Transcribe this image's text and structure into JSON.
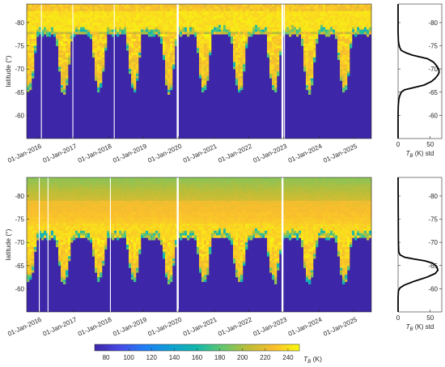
{
  "chart_data": [
    {
      "type": "heatmap",
      "panel": "top",
      "ylabel": "latitude (°)",
      "y_ticks": [
        -80,
        -75,
        -70,
        -65,
        -60
      ],
      "ylim": [
        -84,
        -55
      ],
      "x_ticks": [
        "01-Jan-2016",
        "01-Jan-2017",
        "01-Jan-2018",
        "01-Jan-2019",
        "01-Jan-2020",
        "01-Jan-2021",
        "01-Jan-2022",
        "01-Jan-2023",
        "01-Jan-2024",
        "01-Jan-2025"
      ],
      "x_range": [
        "2015-09-01",
        "2025-07-01"
      ],
      "data_gaps": [
        [
          "2019-12-12",
          "2020-01-02"
        ],
        [
          "2022-12-08",
          "2022-12-28"
        ]
      ],
      "gap_lines": [
        "2016-02-01",
        "2016-12-25",
        "2018-03-01",
        "2023-01-08"
      ],
      "ice_edge_latitude": -77.5,
      "winter_extent_north_latitude": -64.5,
      "field_values_K": {
        "land_ice": 80,
        "pole": 240,
        "ice_edge_band": 225,
        "ocean": 80
      },
      "colorscale": "parula"
    },
    {
      "type": "heatmap",
      "panel": "bottom",
      "ylabel": "latitude (°)",
      "y_ticks": [
        -80,
        -75,
        -70,
        -65,
        -60
      ],
      "ylim": [
        -84,
        -55
      ],
      "x_ticks": [
        "01-Jan-2016",
        "01-Jan-2017",
        "01-Jan-2018",
        "01-Jan-2019",
        "01-Jan-2020",
        "01-Jan-2021",
        "01-Jan-2022",
        "01-Jan-2023",
        "01-Jan-2024",
        "01-Jan-2025"
      ],
      "x_range": [
        "2015-09-01",
        "2025-07-01"
      ],
      "data_gaps": [
        [
          "2019-12-12",
          "2020-01-02"
        ],
        [
          "2022-12-08",
          "2022-12-28"
        ]
      ],
      "gap_lines": [
        "2016-01-10",
        "2016-04-10",
        "2018-01-20"
      ],
      "ice_edge_latitude": -71,
      "winter_extent_north_latitude": -61,
      "field_values_K": {
        "pole": 190,
        "mid_band": 220,
        "ice_edge_band": 232,
        "ocean": 80
      },
      "colorscale": "parula"
    },
    {
      "type": "line",
      "panel": "top-right",
      "xlabel": "T_B (K) std",
      "x_ticks": [
        0,
        50
      ],
      "xlim": [
        0,
        68
      ],
      "y_ticks": [
        -80,
        -75,
        -70,
        -65,
        -60
      ],
      "ylim": [
        -84,
        -55
      ],
      "x": [
        0,
        0,
        0.3,
        1.2,
        2.5,
        5,
        10,
        25,
        40,
        52,
        58,
        62,
        64,
        63,
        60,
        55,
        46,
        34,
        22,
        12,
        5,
        2,
        0.5,
        0,
        0
      ],
      "y": [
        -55,
        -60,
        -62,
        -63.5,
        -64.2,
        -65,
        -65.5,
        -66,
        -66.5,
        -67.3,
        -68,
        -68.7,
        -69.3,
        -70,
        -70.7,
        -71.5,
        -72.2,
        -72.6,
        -73,
        -73.5,
        -74,
        -74.8,
        -76,
        -78,
        -84
      ]
    },
    {
      "type": "line",
      "panel": "bottom-right",
      "xlabel": "T_B (K) std",
      "x_ticks": [
        0,
        50
      ],
      "xlim": [
        0,
        68
      ],
      "y_ticks": [
        -80,
        -75,
        -70,
        -65,
        -60
      ],
      "ylim": [
        -84,
        -55
      ],
      "x": [
        0,
        0,
        0.5,
        3,
        10,
        25,
        45,
        58,
        62,
        60,
        54,
        42,
        25,
        10,
        3,
        1,
        0.5,
        0
      ],
      "y": [
        -55,
        -58,
        -59.5,
        -60.2,
        -60.8,
        -61.6,
        -62.5,
        -63.3,
        -64,
        -64.8,
        -65.5,
        -66,
        -66.4,
        -66.8,
        -67.3,
        -68,
        -70,
        -84
      ]
    }
  ],
  "colorbar": {
    "ticks": [
      80,
      100,
      120,
      140,
      160,
      180,
      200,
      220,
      240
    ],
    "range": [
      70,
      250
    ],
    "label_main": "T",
    "label_sub": "B",
    "label_unit": " (K)"
  }
}
